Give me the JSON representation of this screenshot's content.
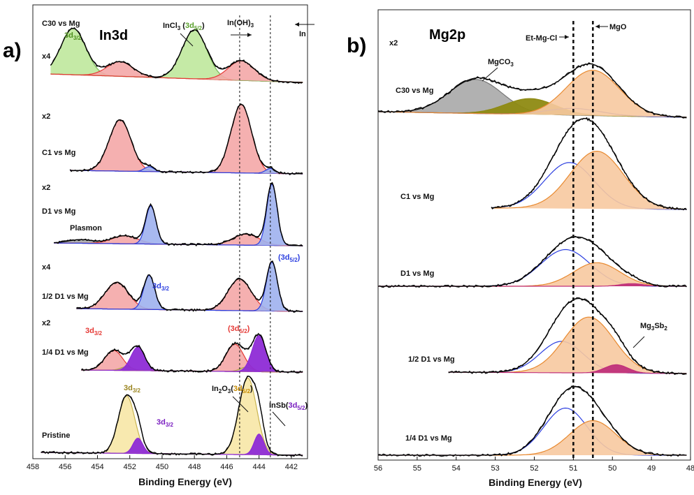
{
  "figure": {
    "panel_a_label": "a)",
    "panel_b_label": "b)"
  },
  "colors": {
    "pink": "#f4a7a7",
    "pinkLine": "#e53935",
    "blue": "#9fb1ee",
    "blueLine": "#2c3fe0",
    "purple": "#8e2bd6",
    "yellow": "#f7e7a6",
    "green": "#bfe89c",
    "grey": "#a9a9a9",
    "olive": "#8e8a12",
    "orange": "#f7c9a0",
    "orangeLine": "#e8892f",
    "magenta": "#c0307a",
    "tan": "#d8cf92"
  },
  "chart_data": [
    {
      "type": "area",
      "panel": "a",
      "title": "In3d",
      "xlabel": "Binding Energy (eV)",
      "xlim": [
        458,
        441
      ],
      "xticks": [
        458,
        456,
        454,
        452,
        450,
        448,
        446,
        444,
        442
      ],
      "reference_lines": [
        445.2,
        443.3
      ],
      "annotations": {
        "incl3": {
          "main": "InCl",
          "sub1": "3",
          "mid": " (",
          "colored": "3d",
          "colored_sub": "5/2",
          "end": ")"
        },
        "inoh": {
          "main": "In(OH)",
          "sub1": "3"
        },
        "in": "In",
        "plasmon": "Plasmon",
        "d32_green": {
          "main": "3d",
          "sub": "3/2"
        },
        "d32_blue": {
          "main": "3d",
          "sub": "3/2"
        },
        "d52_blue": {
          "pre": "(",
          "main": "3d",
          "sub": "5/2",
          "post": ")"
        },
        "d32_red": {
          "main": "3d",
          "sub": "3/2"
        },
        "d52_red": {
          "pre": "(",
          "main": "3d",
          "sub": "5/2",
          "post": ")"
        },
        "d32_yellow": {
          "main": "3d",
          "sub": "3/2"
        },
        "d32_purple": {
          "main": "3d",
          "sub": "3/2"
        },
        "in2o3": {
          "main": "In",
          "s1": "2",
          "m2": "O",
          "s2": "3",
          "mid": "(",
          "colored": "3d",
          "colored_sub": "5/2",
          "end": ")"
        },
        "insb": {
          "main": "InSb(",
          "colored": "3d",
          "colored_sub": "5/2",
          "end": ")"
        }
      },
      "series": [
        {
          "name": "C30 vs Mg",
          "multiplier": "x4",
          "peaks": [
            {
              "center": 455.5,
              "height": 0.95,
              "fwhm": 1.8,
              "color": "green"
            },
            {
              "center": 452.6,
              "height": 0.3,
              "fwhm": 1.9,
              "color": "pink"
            },
            {
              "center": 448.0,
              "height": 1.0,
              "fwhm": 1.8,
              "color": "green"
            },
            {
              "center": 445.1,
              "height": 0.4,
              "fwhm": 1.9,
              "color": "pink"
            }
          ]
        },
        {
          "name": "C1 vs Mg",
          "multiplier": "x2",
          "peaks": [
            {
              "center": 452.6,
              "height": 0.75,
              "fwhm": 1.6,
              "color": "pink"
            },
            {
              "center": 450.8,
              "height": 0.07,
              "fwhm": 0.7,
              "color": "blue"
            },
            {
              "center": 445.1,
              "height": 1.0,
              "fwhm": 1.5,
              "color": "pink"
            },
            {
              "center": 443.3,
              "height": 0.07,
              "fwhm": 0.7,
              "color": "blue"
            }
          ]
        },
        {
          "name": "D1 vs Mg",
          "multiplier": "x2",
          "peaks": [
            {
              "center": 455.0,
              "height": 0.06,
              "fwhm": 1.8,
              "color": "grey"
            },
            {
              "center": 452.3,
              "height": 0.13,
              "fwhm": 1.9,
              "color": "pink"
            },
            {
              "center": 450.7,
              "height": 0.62,
              "fwhm": 0.75,
              "color": "blue"
            },
            {
              "center": 444.8,
              "height": 0.18,
              "fwhm": 1.9,
              "color": "pink"
            },
            {
              "center": 443.2,
              "height": 1.0,
              "fwhm": 0.75,
              "color": "blue"
            }
          ]
        },
        {
          "name": "1/2 D1 vs Mg",
          "multiplier": "x4",
          "peaks": [
            {
              "center": 452.8,
              "height": 0.55,
              "fwhm": 1.7,
              "color": "pink"
            },
            {
              "center": 450.8,
              "height": 0.7,
              "fwhm": 0.8,
              "color": "blue"
            },
            {
              "center": 445.2,
              "height": 0.65,
              "fwhm": 1.7,
              "color": "pink"
            },
            {
              "center": 443.2,
              "height": 1.0,
              "fwhm": 0.8,
              "color": "blue"
            }
          ]
        },
        {
          "name": "1/4 D1 vs Mg",
          "multiplier": "x2",
          "peaks": [
            {
              "center": 453.0,
              "height": 0.55,
              "fwhm": 1.3,
              "color": "pink"
            },
            {
              "center": 452.2,
              "height": 0.1,
              "fwhm": 0.9,
              "color": "tan"
            },
            {
              "center": 451.5,
              "height": 0.65,
              "fwhm": 1.0,
              "color": "purple"
            },
            {
              "center": 445.5,
              "height": 0.75,
              "fwhm": 1.3,
              "color": "pink"
            },
            {
              "center": 444.8,
              "height": 0.12,
              "fwhm": 0.9,
              "color": "tan"
            },
            {
              "center": 444.0,
              "height": 1.0,
              "fwhm": 1.0,
              "color": "purple"
            }
          ]
        },
        {
          "name": "Pristine",
          "multiplier": "",
          "peaks": [
            {
              "center": 452.2,
              "height": 0.75,
              "fwhm": 1.2,
              "color": "yellow"
            },
            {
              "center": 451.5,
              "height": 0.2,
              "fwhm": 0.7,
              "color": "purple"
            },
            {
              "center": 444.7,
              "height": 1.0,
              "fwhm": 1.3,
              "color": "yellow"
            },
            {
              "center": 444.0,
              "height": 0.27,
              "fwhm": 0.7,
              "color": "purple"
            }
          ]
        }
      ]
    },
    {
      "type": "area",
      "panel": "b",
      "title": "Mg2p",
      "xlabel": "Binding Energy (eV)",
      "xlim": [
        56,
        48
      ],
      "xticks": [
        56,
        55,
        54,
        53,
        52,
        51,
        50,
        49,
        48
      ],
      "reference_lines": [
        51.0,
        50.5
      ],
      "annotations": {
        "etmgcl": "Et-Mg-Cl",
        "mgo": "MgO",
        "mgco3": {
          "main": "MgCO",
          "sub": "3"
        },
        "mg3sb2": {
          "main": "Mg",
          "s1": "3",
          "m2": "Sb",
          "s2": "2"
        }
      },
      "series": [
        {
          "name": "C30 vs Mg",
          "multiplier": "x2",
          "peaks": [
            {
              "center": 53.5,
              "height": 0.75,
              "fwhm": 1.6,
              "color": "grey"
            },
            {
              "center": 52.1,
              "height": 0.35,
              "fwhm": 1.5,
              "color": "olive"
            },
            {
              "center": 51.0,
              "height": 0.15,
              "fwhm": 1.6,
              "color": "blueLine"
            },
            {
              "center": 50.5,
              "height": 1.0,
              "fwhm": 1.6,
              "color": "orange"
            }
          ]
        },
        {
          "name": "C1 vs Mg",
          "multiplier": "",
          "peaks": [
            {
              "center": 51.1,
              "height": 0.6,
              "fwhm": 1.5,
              "color": "blueLine"
            },
            {
              "center": 50.4,
              "height": 0.75,
              "fwhm": 1.6,
              "color": "orange"
            }
          ]
        },
        {
          "name": "D1 vs Mg",
          "multiplier": "",
          "peaks": [
            {
              "center": 51.2,
              "height": 0.7,
              "fwhm": 1.5,
              "color": "blueLine"
            },
            {
              "center": 50.4,
              "height": 0.45,
              "fwhm": 1.4,
              "color": "orange"
            },
            {
              "center": 49.5,
              "height": 0.05,
              "fwhm": 0.7,
              "color": "magenta"
            }
          ]
        },
        {
          "name": "1/2 D1 vs Mg",
          "multiplier": "",
          "peaks": [
            {
              "center": 51.3,
              "height": 0.45,
              "fwhm": 1.3,
              "color": "blueLine"
            },
            {
              "center": 50.6,
              "height": 0.8,
              "fwhm": 1.5,
              "color": "orange"
            },
            {
              "center": 49.9,
              "height": 0.12,
              "fwhm": 0.7,
              "color": "magenta"
            }
          ]
        },
        {
          "name": "1/4 D1 vs Mg",
          "multiplier": "",
          "peaks": [
            {
              "center": 51.2,
              "height": 0.75,
              "fwhm": 1.3,
              "color": "blueLine"
            },
            {
              "center": 50.5,
              "height": 0.55,
              "fwhm": 1.4,
              "color": "orange"
            }
          ]
        }
      ]
    }
  ]
}
